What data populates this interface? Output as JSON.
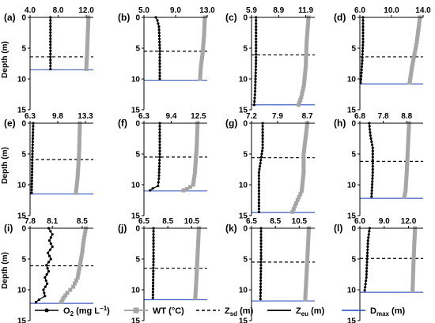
{
  "chart_data": {
    "type": "line",
    "y_axis_label": "Depth (m)",
    "y_range": [
      0,
      15
    ],
    "y_ticks": [
      "0",
      "5",
      "10",
      "15"
    ],
    "legend": [
      {
        "key": "o2",
        "label": "O",
        "sub": "2",
        "suffix": " (mg L",
        "sup": "−1",
        "tail": ")",
        "color": "#000000",
        "style": "line-dot"
      },
      {
        "key": "wt",
        "label": "WT (°C)",
        "color": "#a6a6a6",
        "style": "line-square"
      },
      {
        "key": "zsd",
        "label": "Z",
        "sub": "sd",
        "suffix": " (m)",
        "color": "#000000",
        "style": "dashed"
      },
      {
        "key": "zeu",
        "label": "Z",
        "sub": "eu",
        "suffix": " (m)",
        "color": "#000000",
        "style": "solid"
      },
      {
        "key": "dmax",
        "label": "D",
        "sub": "max",
        "suffix": " (m)",
        "color": "#3f5fbf",
        "style": "solid"
      }
    ],
    "panels": [
      {
        "label": "(a)",
        "x_ticks": [
          "4.0",
          "8.0",
          "12.0"
        ],
        "x_values": [
          4.0,
          8.0,
          12.0
        ],
        "x_range": [
          4.0,
          13.0
        ],
        "o2": [
          [
            6.9,
            0
          ],
          [
            6.9,
            8.4
          ]
        ],
        "wt": [
          [
            12.3,
            0
          ],
          [
            12.2,
            3
          ],
          [
            12.1,
            6
          ],
          [
            12.0,
            8.4
          ]
        ],
        "zsd": 6.4,
        "zeu": null,
        "dmax": 8.5
      },
      {
        "label": "(b)",
        "x_ticks": [
          "5.0",
          "9.0",
          "13.0"
        ],
        "x_values": [
          5.0,
          9.0,
          13.0
        ],
        "x_range": [
          5.0,
          13.0
        ],
        "o2": [
          [
            6.5,
            0
          ],
          [
            6.7,
            0.5
          ],
          [
            6.9,
            1.5
          ],
          [
            7.0,
            5
          ],
          [
            7.0,
            10.0
          ]
        ],
        "wt": [
          [
            12.7,
            0
          ],
          [
            12.6,
            3
          ],
          [
            12.4,
            6
          ],
          [
            12.2,
            8
          ],
          [
            12.1,
            10.0
          ]
        ],
        "zsd": 5.5,
        "zeu": null,
        "dmax": 10.2
      },
      {
        "label": "(c)",
        "x_ticks": [
          "5.9",
          "8.9",
          "11.9"
        ],
        "x_values": [
          5.9,
          8.9,
          11.9
        ],
        "x_range": [
          5.9,
          12.9
        ],
        "o2": [
          [
            6.4,
            0
          ],
          [
            6.4,
            7
          ],
          [
            6.3,
            12
          ],
          [
            6.2,
            14.2
          ]
        ],
        "wt": [
          [
            12.2,
            0
          ],
          [
            12.0,
            4
          ],
          [
            11.9,
            8
          ],
          [
            11.7,
            11
          ],
          [
            11.4,
            13
          ],
          [
            11.1,
            14.2
          ]
        ],
        "zsd": 6.1,
        "zeu": null,
        "dmax": 14.2
      },
      {
        "label": "(d)",
        "x_ticks": [
          "6.0",
          "10.0",
          "14.0"
        ],
        "x_values": [
          6.0,
          10.0,
          14.0
        ],
        "x_range": [
          6.0,
          14.0
        ],
        "o2": [
          [
            6.4,
            0
          ],
          [
            6.4,
            4
          ],
          [
            6.3,
            7
          ],
          [
            6.2,
            9
          ],
          [
            6.1,
            10.6
          ]
        ],
        "wt": [
          [
            13.6,
            0
          ],
          [
            13.4,
            2
          ],
          [
            13.2,
            4
          ],
          [
            12.9,
            6
          ],
          [
            12.6,
            8
          ],
          [
            12.3,
            10.6
          ]
        ],
        "zsd": 6.4,
        "zeu": null,
        "dmax": 10.8
      },
      {
        "label": "(e)",
        "x_ticks": [
          "6.3",
          "9.8",
          "13.3"
        ],
        "x_values": [
          6.3,
          9.8,
          13.3
        ],
        "x_range": [
          6.3,
          14.3
        ],
        "o2": [
          [
            6.7,
            0
          ],
          [
            6.6,
            5
          ],
          [
            6.5,
            11.3
          ]
        ],
        "wt": [
          [
            12.6,
            0
          ],
          [
            12.5,
            5
          ],
          [
            12.3,
            9
          ],
          [
            12.1,
            11.3
          ]
        ],
        "zsd": 5.9,
        "zeu": null,
        "dmax": 11.5
      },
      {
        "label": "(f)",
        "x_ticks": [
          "6.3",
          "9.4",
          "12.5"
        ],
        "x_values": [
          6.3,
          9.4,
          12.5
        ],
        "x_range": [
          6.3,
          13.5
        ],
        "o2": [
          [
            8.1,
            0
          ],
          [
            8.1,
            5
          ],
          [
            8.0,
            9
          ],
          [
            7.9,
            10.2
          ],
          [
            7.3,
            10.6
          ],
          [
            7.0,
            10.9
          ]
        ],
        "wt": [
          [
            12.4,
            0
          ],
          [
            12.3,
            4
          ],
          [
            12.1,
            8
          ],
          [
            11.9,
            10.0
          ],
          [
            11.2,
            10.7
          ],
          [
            10.8,
            10.9
          ]
        ],
        "zsd": 5.5,
        "zeu": null,
        "dmax": 11.0
      },
      {
        "label": "(g)",
        "x_ticks": [
          "7.2",
          "7.9",
          "8.7"
        ],
        "x_values": [
          7.2,
          7.9,
          8.7
        ],
        "x_range": [
          7.2,
          8.9
        ],
        "o2": [
          [
            7.5,
            0
          ],
          [
            7.5,
            4
          ],
          [
            7.4,
            8
          ],
          [
            7.4,
            14.4
          ]
        ],
        "wt": [
          [
            8.7,
            0
          ],
          [
            8.6,
            5
          ],
          [
            8.6,
            8
          ],
          [
            8.55,
            11
          ],
          [
            8.4,
            13
          ],
          [
            8.3,
            14.4
          ]
        ],
        "zsd": 5.6,
        "zeu": null,
        "dmax": 14.5
      },
      {
        "label": "(h)",
        "x_ticks": [
          "6.8",
          "7.8",
          "8.8"
        ],
        "x_values": [
          6.8,
          7.8,
          8.8
        ],
        "x_range": [
          6.8,
          9.5
        ],
        "o2": [
          [
            7.2,
            0
          ],
          [
            7.25,
            2
          ],
          [
            7.35,
            4
          ],
          [
            7.35,
            8
          ],
          [
            7.3,
            11.9
          ]
        ],
        "wt": [
          [
            8.9,
            0
          ],
          [
            8.85,
            4
          ],
          [
            8.8,
            8
          ],
          [
            8.75,
            11
          ],
          [
            8.7,
            11.9
          ]
        ],
        "zsd": 6.2,
        "zeu": null,
        "dmax": 12.2
      },
      {
        "label": "(i)",
        "x_ticks": [
          "7.8",
          "8.1",
          "8.5"
        ],
        "x_values": [
          7.8,
          8.1,
          8.5
        ],
        "x_range": [
          7.8,
          8.65
        ],
        "o2": [
          [
            8.05,
            0
          ],
          [
            8.1,
            1
          ],
          [
            8.06,
            2
          ],
          [
            8.1,
            3
          ],
          [
            8.04,
            4
          ],
          [
            8.08,
            5
          ],
          [
            8.02,
            6
          ],
          [
            8.05,
            7
          ],
          [
            8.0,
            8
          ],
          [
            8.03,
            9
          ],
          [
            7.98,
            10
          ],
          [
            8.0,
            11
          ],
          [
            7.92,
            11.6
          ],
          [
            7.88,
            12.0
          ]
        ],
        "wt": [
          [
            8.55,
            0
          ],
          [
            8.52,
            2
          ],
          [
            8.5,
            4
          ],
          [
            8.47,
            6
          ],
          [
            8.44,
            8
          ],
          [
            8.38,
            9.5
          ],
          [
            8.3,
            10.5
          ],
          [
            8.25,
            11.3
          ],
          [
            8.22,
            12.0
          ]
        ],
        "zsd": 6.1,
        "zeu": null,
        "dmax": 12.2
      },
      {
        "label": "(j)",
        "x_ticks": [
          "6.5",
          "8.5",
          "10.5"
        ],
        "x_values": [
          6.5,
          8.5,
          10.5
        ],
        "x_range": [
          6.5,
          11.8
        ],
        "o2": [
          [
            7.3,
            0
          ],
          [
            7.3,
            5
          ],
          [
            7.25,
            11.3
          ]
        ],
        "wt": [
          [
            11.1,
            0
          ],
          [
            11.0,
            4
          ],
          [
            10.9,
            8
          ],
          [
            10.8,
            11.3
          ]
        ],
        "zsd": 6.5,
        "zeu": null,
        "dmax": 11.6
      },
      {
        "label": "(k)",
        "x_ticks": [
          "6.5",
          "8.5",
          "10.5"
        ],
        "x_values": [
          6.5,
          8.5,
          10.5
        ],
        "x_range": [
          6.5,
          11.8
        ],
        "o2": [
          [
            7.3,
            0
          ],
          [
            7.3,
            5
          ],
          [
            7.25,
            11.5
          ]
        ],
        "wt": [
          [
            11.3,
            0
          ],
          [
            11.2,
            4
          ],
          [
            11.1,
            8
          ],
          [
            11.0,
            11.5
          ]
        ],
        "zsd": 5.5,
        "zeu": null,
        "dmax": 11.8
      },
      {
        "label": "(l)",
        "x_ticks": [
          "6.0",
          "9.0",
          "12.0"
        ],
        "x_values": [
          6.0,
          9.0,
          12.0
        ],
        "x_range": [
          6.0,
          13.8
        ],
        "o2": [
          [
            7.2,
            0
          ],
          [
            7.0,
            2
          ],
          [
            6.9,
            5
          ],
          [
            6.8,
            8
          ],
          [
            6.6,
            10.1
          ]
        ],
        "wt": [
          [
            12.8,
            0
          ],
          [
            12.7,
            3
          ],
          [
            12.6,
            6
          ],
          [
            12.5,
            10.1
          ]
        ],
        "zsd": 4.9,
        "zeu": null,
        "dmax": 10.4
      }
    ]
  }
}
